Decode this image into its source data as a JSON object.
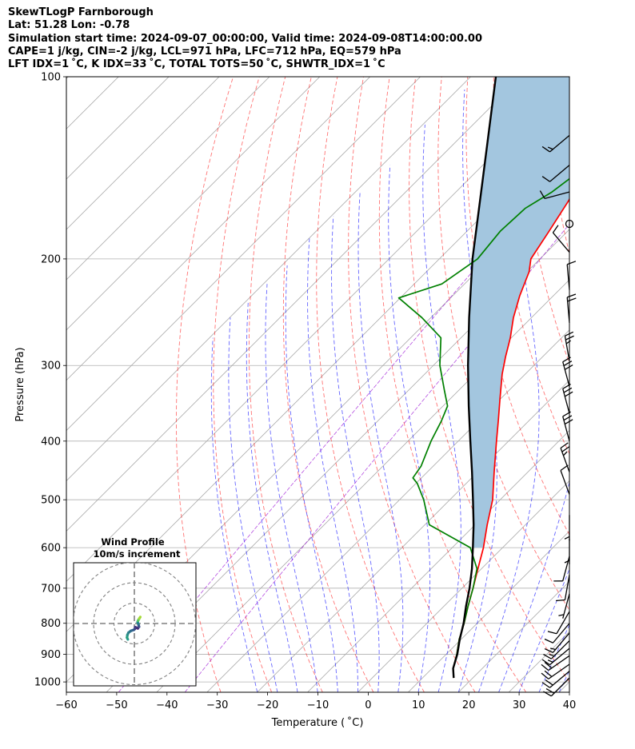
{
  "title": {
    "line1": "SkewTLogP Farnborough",
    "line2": "Lat: 51.28   Lon: -0.78",
    "line3": "Simulation start time: 2024-09-07_00:00:00, Valid time: 2024-09-08T14:00:00.00",
    "line4": "CAPE=1 j/kg, CIN=-2 j/kg, LCL=971 hPa, LFC=712 hPa, EQ=579 hPa",
    "line5": "LFT IDX=1 ˚C, K IDX=33 ˚C, TOTAL TOTS=50 ˚C, SHWTR_IDX=1 ˚C"
  },
  "chart_data": {
    "type": "skew-t log-p",
    "xlabel": "Temperature ( ˚C)",
    "ylabel": "Pressure (hPa)",
    "xlim": [
      -60,
      40
    ],
    "ylim": [
      1040,
      100
    ],
    "x_ticks": [
      "−60",
      "−50",
      "−40",
      "−30",
      "−20",
      "−10",
      "0",
      "10",
      "20",
      "30",
      "40"
    ],
    "x_tick_values": [
      -60,
      -50,
      -40,
      -30,
      -20,
      -10,
      0,
      10,
      20,
      30,
      40
    ],
    "y_ticks": [
      "1000",
      "900",
      "800",
      "700",
      "600",
      "500",
      "400",
      "300",
      "200",
      "100"
    ],
    "y_tick_values": [
      1000,
      900,
      800,
      700,
      600,
      500,
      400,
      300,
      200,
      100
    ],
    "grid": true,
    "y_scale": "log",
    "series": [
      {
        "role": "temperature",
        "color": "#ff0000",
        "p": [
          985,
          950,
          900,
          850,
          800,
          750,
          700,
          650,
          600,
          550,
          500,
          450,
          400,
          370,
          340,
          310,
          290,
          270,
          250,
          230,
          210,
          200,
          180,
          160,
          140,
          120,
          100
        ],
        "t": [
          16.2,
          14.2,
          12.1,
          9.6,
          7.4,
          4.8,
          2.2,
          -0.7,
          -3.8,
          -7.6,
          -11.5,
          -16.7,
          -22.4,
          -26.1,
          -30.2,
          -34.6,
          -37.4,
          -40.2,
          -43.6,
          -46.7,
          -49.6,
          -51.8,
          -53.7,
          -55.9,
          -59.9,
          -62.7,
          -65.5
        ]
      },
      {
        "role": "dewpoint",
        "color": "#008000",
        "p": [
          985,
          950,
          900,
          850,
          800,
          750,
          700,
          650,
          600,
          550,
          500,
          470,
          460,
          440,
          400,
          370,
          350,
          330,
          300,
          270,
          250,
          232,
          220,
          200,
          180,
          165,
          155,
          140,
          125,
          110,
          100
        ],
        "t": [
          16.2,
          14.2,
          12.1,
          9.6,
          7.4,
          4.8,
          2.2,
          -0.9,
          -6.4,
          -19.1,
          -25.2,
          -29.7,
          -31.7,
          -32.4,
          -35.4,
          -37.4,
          -39.1,
          -42.8,
          -48.7,
          -54.0,
          -61.8,
          -70.3,
          -64.5,
          -62.4,
          -63.4,
          -63.0,
          -60.9,
          -59.2,
          -57.1,
          -55.4,
          -54.6
        ]
      },
      {
        "role": "parcel",
        "color": "#000000",
        "p": [
          985,
          950,
          900,
          850,
          800,
          750,
          700,
          650,
          600,
          550,
          500,
          450,
          400,
          350,
          300,
          250,
          200,
          150,
          100
        ],
        "t": [
          16.2,
          14.2,
          12.2,
          9.7,
          7.3,
          4.4,
          1.5,
          -1.9,
          -5.9,
          -10.3,
          -15.4,
          -21.1,
          -27.6,
          -34.9,
          -43.1,
          -52.4,
          -63.4,
          -76.5,
          -95.0
        ]
      }
    ],
    "wind_barbs": [
      {
        "p": 985,
        "speed_kt": 20,
        "dir_deg": 225
      },
      {
        "p": 960,
        "speed_kt": 20,
        "dir_deg": 230
      },
      {
        "p": 935,
        "speed_kt": 20,
        "dir_deg": 235
      },
      {
        "p": 905,
        "speed_kt": 20,
        "dir_deg": 235
      },
      {
        "p": 880,
        "speed_kt": 15,
        "dir_deg": 230
      },
      {
        "p": 855,
        "speed_kt": 15,
        "dir_deg": 225
      },
      {
        "p": 830,
        "speed_kt": 15,
        "dir_deg": 220
      },
      {
        "p": 800,
        "speed_kt": 10,
        "dir_deg": 220
      },
      {
        "p": 765,
        "speed_kt": 10,
        "dir_deg": 210
      },
      {
        "p": 715,
        "speed_kt": 5,
        "dir_deg": 195
      },
      {
        "p": 665,
        "speed_kt": 10,
        "dir_deg": 190
      },
      {
        "p": 620,
        "speed_kt": 10,
        "dir_deg": 195
      },
      {
        "p": 580,
        "speed_kt": 5,
        "dir_deg": 180
      },
      {
        "p": 530,
        "speed_kt": 5,
        "dir_deg": 180
      },
      {
        "p": 490,
        "speed_kt": 10,
        "dir_deg": 340
      },
      {
        "p": 450,
        "speed_kt": 25,
        "dir_deg": 340
      },
      {
        "p": 400,
        "speed_kt": 30,
        "dir_deg": 345
      },
      {
        "p": 360,
        "speed_kt": 30,
        "dir_deg": 345
      },
      {
        "p": 325,
        "speed_kt": 30,
        "dir_deg": 345
      },
      {
        "p": 295,
        "speed_kt": 25,
        "dir_deg": 350
      },
      {
        "p": 255,
        "speed_kt": 20,
        "dir_deg": 355
      },
      {
        "p": 225,
        "speed_kt": 10,
        "dir_deg": 355
      },
      {
        "p": 195,
        "speed_kt": 10,
        "dir_deg": 320
      },
      {
        "p": 175,
        "speed_kt": 0,
        "dir_deg": 0
      },
      {
        "p": 155,
        "speed_kt": 10,
        "dir_deg": 255
      },
      {
        "p": 140,
        "speed_kt": 10,
        "dir_deg": 230
      },
      {
        "p": 125,
        "speed_kt": 15,
        "dir_deg": 230
      }
    ],
    "hodograph": {
      "title_line1": "Wind Profile",
      "title_line2": "10m/s increment",
      "rings_ms": [
        10,
        20,
        30
      ],
      "u": [
        -3.2,
        -3.6,
        -3.4,
        -2.9,
        -1.7,
        -0.2,
        0.3,
        0.4,
        1.1,
        1.7,
        2.0,
        2.3,
        2.0,
        1.6,
        1.8,
        2.4,
        2.9
      ],
      "v": [
        -7.8,
        -6.9,
        -5.6,
        -4.5,
        -3.6,
        -3.1,
        -2.6,
        -1.8,
        -2.1,
        -2.4,
        -1.9,
        -1.6,
        -0.4,
        0.6,
        1.4,
        2.4,
        3.2
      ]
    }
  }
}
